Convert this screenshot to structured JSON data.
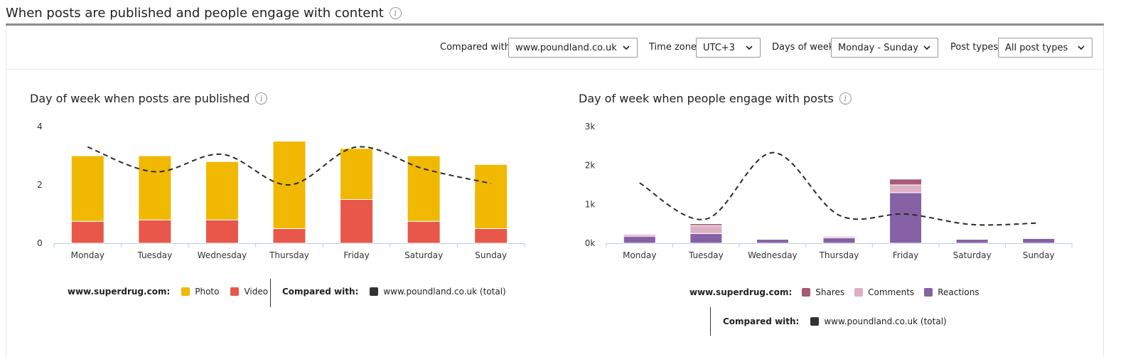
{
  "header": {
    "title": "When posts are published and people engage with content",
    "info": "i"
  },
  "filters": {
    "compared_with_label": "Compared with:",
    "compared_with_value": "www.poundland.co.uk",
    "timezone_label": "Time zone:",
    "timezone_value": "UTC+3",
    "days_label": "Days of week:",
    "days_value": "Monday - Sunday",
    "post_types_label": "Post types:",
    "post_types_value": "All post types"
  },
  "colors": {
    "photo": "#f0b800",
    "video": "#e8574a",
    "shares": "#a85a74",
    "comments": "#ddb1c3",
    "reactions": "#8661a6",
    "compare_line": "#333333"
  },
  "legend_left": {
    "site_label": "www.superdrug.com:",
    "photo": "Photo",
    "video": "Video",
    "compared_label": "Compared with:",
    "compared_value": "www.poundland.co.uk (total)"
  },
  "legend_right": {
    "site_label": "www.superdrug.com:",
    "shares": "Shares",
    "comments": "Comments",
    "reactions": "Reactions",
    "compared_label": "Compared with:",
    "compared_value": "www.poundland.co.uk (total)"
  },
  "chart_data": [
    {
      "type": "bar",
      "stacked": true,
      "title": "Day of week when posts are published",
      "categories": [
        "Monday",
        "Tuesday",
        "Wednesday",
        "Thursday",
        "Friday",
        "Saturday",
        "Sunday"
      ],
      "series": [
        {
          "name": "Video",
          "values": [
            0.75,
            0.8,
            0.8,
            0.5,
            1.5,
            0.75,
            0.5
          ]
        },
        {
          "name": "Photo",
          "values": [
            2.25,
            2.2,
            2.0,
            3.0,
            1.75,
            2.25,
            2.2
          ]
        }
      ],
      "compare_line": {
        "name": "www.poundland.co.uk (total)",
        "values": [
          3.3,
          2.45,
          3.05,
          2.0,
          3.3,
          2.55,
          2.05
        ]
      },
      "yticks": [
        "0",
        "2",
        "4"
      ],
      "ylim": [
        0,
        4
      ],
      "grid": false,
      "legend": "bottom"
    },
    {
      "type": "bar",
      "stacked": true,
      "title": "Day of week when people engage with posts",
      "categories": [
        "Monday",
        "Tuesday",
        "Wednesday",
        "Thursday",
        "Friday",
        "Saturday",
        "Sunday"
      ],
      "series": [
        {
          "name": "Reactions",
          "values": [
            180,
            250,
            100,
            140,
            1300,
            100,
            120
          ]
        },
        {
          "name": "Comments",
          "values": [
            50,
            200,
            0,
            40,
            200,
            0,
            0
          ]
        },
        {
          "name": "Shares",
          "values": [
            10,
            50,
            0,
            10,
            150,
            0,
            0
          ]
        }
      ],
      "compare_line": {
        "name": "www.poundland.co.uk (total)",
        "values": [
          1550,
          620,
          2330,
          720,
          750,
          480,
          520
        ]
      },
      "yticks": [
        "0k",
        "1k",
        "2k",
        "3k"
      ],
      "ylim": [
        0,
        3000
      ],
      "grid": false,
      "legend": "bottom"
    }
  ]
}
